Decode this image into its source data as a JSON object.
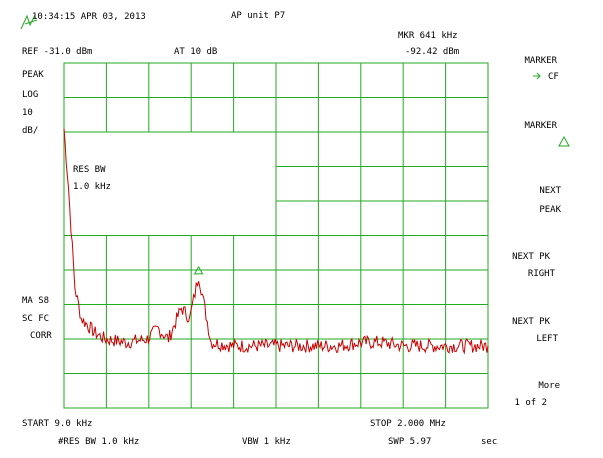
{
  "header": {
    "timestamp": "10:34:15 APR 03, 2013",
    "title": "AP unit P7",
    "marker_readout": "MKR 641 kHz",
    "reference_level": "REF -31.0  dBm",
    "attenuation": "AT 10  dB",
    "marker_value": "-92.42 dBm"
  },
  "left_labels": {
    "detector": "PEAK",
    "scale_type": "LOG",
    "scale_value": "10",
    "scale_unit": "dB/",
    "averaging": "MA S8",
    "coupling": "SC FC",
    "correction": "CORR"
  },
  "annotation": {
    "res_bw_label": "RES BW",
    "res_bw_value": "1.0  kHz"
  },
  "softkeys": [
    {
      "line1": "MARKER",
      "line2": "CF",
      "icon": "marker-arrow-icon"
    },
    {
      "line1": "MARKER",
      "line2": "",
      "icon": "delta-icon"
    },
    {
      "line1": "NEXT",
      "line2": "PEAK"
    },
    {
      "line1": "NEXT PK",
      "line2": "RIGHT"
    },
    {
      "line1": "NEXT PK",
      "line2": "LEFT"
    },
    {
      "line1": "More",
      "line2": "1 of 2"
    }
  ],
  "footer": {
    "start": "START 9.0  kHz",
    "stop": "STOP 2.000  MHz",
    "res_bw": "#RES BW 1.0  kHz",
    "vbw": "VBW 1 kHz",
    "sweep": "SWP 5.97",
    "sweep_unit": "sec"
  },
  "colors": {
    "grid": "#22aa22",
    "trace": "#cc0000",
    "marker": "#22aa22",
    "text": "#000000"
  },
  "chart_data": {
    "type": "line",
    "x_unit": "kHz",
    "y_unit": "dBm",
    "xlim": [
      9,
      2000
    ],
    "ylim": [
      -131,
      -31
    ],
    "grid": true,
    "marker": {
      "x": 641,
      "y": -92.42
    },
    "x": [
      9,
      30,
      60,
      90,
      150,
      200,
      300,
      400,
      450,
      500,
      560,
      600,
      630,
      641,
      670,
      700,
      800,
      900,
      1000,
      1100,
      1200,
      1300,
      1400,
      1500,
      1600,
      1700,
      1800,
      1900,
      2000
    ],
    "y": [
      -50,
      -67,
      -96,
      -105,
      -109,
      -111,
      -112,
      -111,
      -108,
      -111,
      -102,
      -105,
      -96,
      -92.4,
      -102,
      -112,
      -113,
      -113,
      -113,
      -113,
      -113,
      -113,
      -112,
      -112,
      -113,
      -113,
      -113,
      -113,
      -113
    ]
  }
}
